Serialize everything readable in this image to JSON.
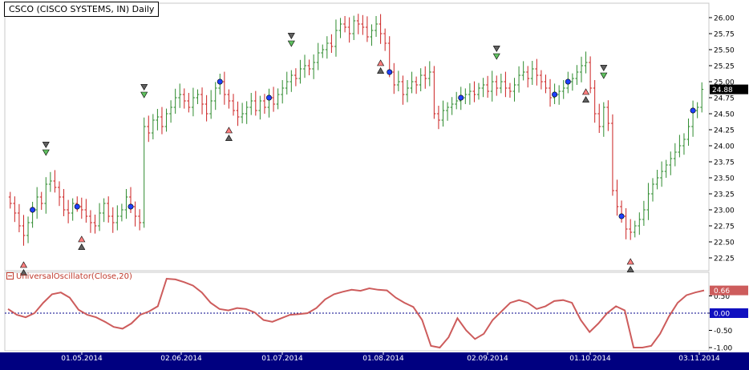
{
  "chart_title": "CSCO (CISCO SYSTEMS, IN) Daily",
  "indicator_label": "UniversalOscillator(Close,20)",
  "colors": {
    "up_bar": "#2e8b2e",
    "down_bar": "#cc2222",
    "oscillator": "#cd5c5c",
    "zero_line": "#00008b",
    "axis_bar": "#000080",
    "price_tag_bg": "#000000",
    "osc_tag_bg": "#cd5c5c",
    "zero_tag_bg": "#1010c0"
  },
  "chart_data": [
    {
      "type": "ohlc",
      "title": "CSCO (CISCO SYSTEMS, IN) Daily",
      "ylim": [
        22.25,
        26.0
      ],
      "y_ticks": [
        "26.00",
        "25.75",
        "25.50",
        "25.25",
        "25.00",
        "24.75",
        "24.50",
        "24.25",
        "24.00",
        "23.75",
        "23.50",
        "23.25",
        "23.00",
        "22.75",
        "22.50",
        "22.25"
      ],
      "x_ticks": [
        "01.05.2014",
        "02.06.2014",
        "01.07.2014",
        "01.08.2014",
        "02.09.2014",
        "01.10.2014",
        "03.11.2014"
      ],
      "last_price": "24.88",
      "close": [
        23.1,
        22.95,
        22.75,
        22.6,
        22.8,
        23.0,
        23.2,
        23.1,
        23.4,
        23.45,
        23.35,
        23.2,
        23.0,
        22.95,
        23.1,
        23.05,
        23.0,
        22.9,
        22.8,
        22.75,
        22.95,
        23.1,
        22.9,
        22.8,
        22.9,
        23.0,
        23.2,
        23.05,
        22.9,
        22.8,
        24.3,
        24.2,
        24.4,
        24.45,
        24.3,
        24.5,
        24.6,
        24.75,
        24.8,
        24.7,
        24.6,
        24.75,
        24.8,
        24.65,
        24.5,
        24.7,
        24.9,
        25.0,
        24.8,
        24.7,
        24.55,
        24.45,
        24.5,
        24.6,
        24.7,
        24.55,
        24.7,
        24.6,
        24.75,
        24.65,
        24.8,
        24.9,
        25.0,
        25.1,
        25.05,
        25.2,
        25.25,
        25.2,
        25.3,
        25.45,
        25.5,
        25.6,
        25.55,
        25.8,
        25.9,
        25.85,
        25.75,
        25.95,
        25.9,
        25.85,
        25.7,
        25.8,
        25.9,
        25.75,
        25.6,
        25.15,
        24.95,
        25.0,
        24.8,
        24.9,
        25.0,
        24.95,
        25.1,
        25.05,
        25.15,
        24.5,
        24.4,
        24.55,
        24.6,
        24.65,
        24.7,
        24.75,
        24.8,
        24.85,
        24.8,
        24.9,
        24.95,
        24.85,
        25.0,
        24.9,
        25.0,
        24.9,
        24.85,
        24.95,
        25.1,
        25.15,
        25.05,
        25.2,
        25.1,
        25.0,
        24.9,
        24.75,
        24.8,
        24.85,
        24.9,
        25.0,
        25.05,
        25.15,
        25.25,
        25.3,
        24.9,
        24.5,
        24.3,
        24.6,
        24.35,
        23.3,
        23.05,
        22.9,
        22.7,
        22.65,
        22.75,
        22.85,
        23.0,
        23.25,
        23.4,
        23.5,
        23.6,
        23.7,
        23.8,
        23.9,
        24.0,
        24.1,
        24.3,
        24.55,
        24.6,
        24.88
      ],
      "volatility_note": ""
    },
    {
      "type": "line",
      "title": "UniversalOscillator(Close,20)",
      "ylim": [
        -1.0,
        1.0
      ],
      "y_ticks": [
        "0.50",
        "0.00",
        "-0.50",
        "-1.00"
      ],
      "last_value": "0.66",
      "zero_label": "0.00",
      "values": [
        0.12,
        -0.05,
        -0.12,
        0.0,
        0.3,
        0.55,
        0.6,
        0.45,
        0.1,
        -0.05,
        -0.12,
        -0.25,
        -0.4,
        -0.45,
        -0.3,
        -0.05,
        0.05,
        0.2,
        1.0,
        0.98,
        0.9,
        0.8,
        0.6,
        0.3,
        0.12,
        0.08,
        0.15,
        0.12,
        0.02,
        -0.2,
        -0.25,
        -0.15,
        -0.05,
        -0.03,
        0.0,
        0.15,
        0.4,
        0.55,
        0.62,
        0.68,
        0.65,
        0.72,
        0.68,
        0.66,
        0.45,
        0.3,
        0.18,
        -0.2,
        -0.95,
        -1.0,
        -0.7,
        -0.15,
        -0.5,
        -0.75,
        -0.6,
        -0.2,
        0.05,
        0.3,
        0.38,
        0.3,
        0.12,
        0.2,
        0.35,
        0.38,
        0.3,
        -0.2,
        -0.55,
        -0.3,
        0.0,
        0.2,
        0.08,
        -1.0,
        -1.0,
        -0.95,
        -0.6,
        -0.1,
        0.3,
        0.52,
        0.6,
        0.66
      ]
    }
  ]
}
